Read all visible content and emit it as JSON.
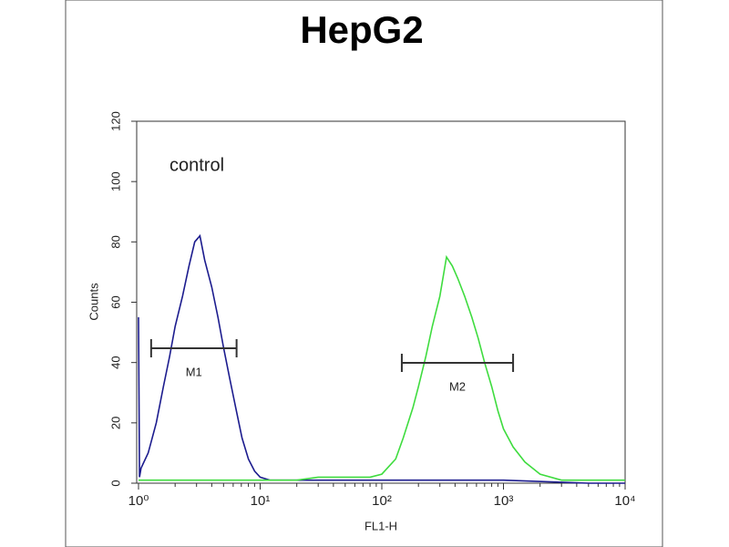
{
  "chart_data": {
    "type": "histogram-overlay",
    "title": "HepG2",
    "xlabel": "FL1-H",
    "ylabel": "Counts",
    "annotation": "control",
    "xscale": "log",
    "xlim": [
      1,
      10000
    ],
    "xticks": [
      {
        "value": 1,
        "label": "10⁰"
      },
      {
        "value": 10,
        "label": "10¹"
      },
      {
        "value": 100,
        "label": "10²"
      },
      {
        "value": 1000,
        "label": "10³"
      },
      {
        "value": 10000,
        "label": "10⁴"
      }
    ],
    "ylim": [
      0,
      120
    ],
    "yticks": [
      0,
      20,
      40,
      60,
      80,
      100,
      120
    ],
    "series": [
      {
        "name": "control",
        "color": "#1c1c8e",
        "x": [
          1.0,
          1.02,
          1.05,
          1.2,
          1.4,
          1.6,
          1.8,
          2.0,
          2.3,
          2.6,
          2.9,
          3.2,
          3.5,
          4.0,
          4.5,
          5.0,
          5.6,
          6.3,
          7.1,
          8.0,
          9.0,
          10,
          12,
          15,
          20,
          30,
          50,
          100,
          200,
          500,
          1000,
          5000,
          10000
        ],
        "values": [
          55,
          2,
          5,
          10,
          20,
          32,
          42,
          52,
          62,
          72,
          80,
          82,
          74,
          65,
          55,
          45,
          35,
          25,
          15,
          8,
          4,
          2,
          1,
          1,
          1,
          1,
          1,
          1,
          1,
          1,
          1,
          0,
          0
        ]
      },
      {
        "name": "HepG2",
        "color": "#3fdc3f",
        "x": [
          1,
          10,
          20,
          30,
          50,
          80,
          100,
          130,
          150,
          180,
          200,
          230,
          260,
          300,
          340,
          380,
          420,
          480,
          550,
          620,
          700,
          800,
          900,
          1000,
          1200,
          1500,
          2000,
          3000,
          5000,
          10000
        ],
        "values": [
          1,
          1,
          1,
          2,
          2,
          2,
          3,
          8,
          15,
          25,
          32,
          42,
          52,
          62,
          75,
          72,
          68,
          62,
          55,
          48,
          40,
          32,
          24,
          18,
          12,
          7,
          3,
          1,
          1,
          1
        ]
      }
    ],
    "markers": [
      {
        "label": "M1",
        "range": [
          1.27,
          6.4
        ]
      },
      {
        "label": "M2",
        "range": [
          146,
          1200
        ]
      }
    ]
  }
}
